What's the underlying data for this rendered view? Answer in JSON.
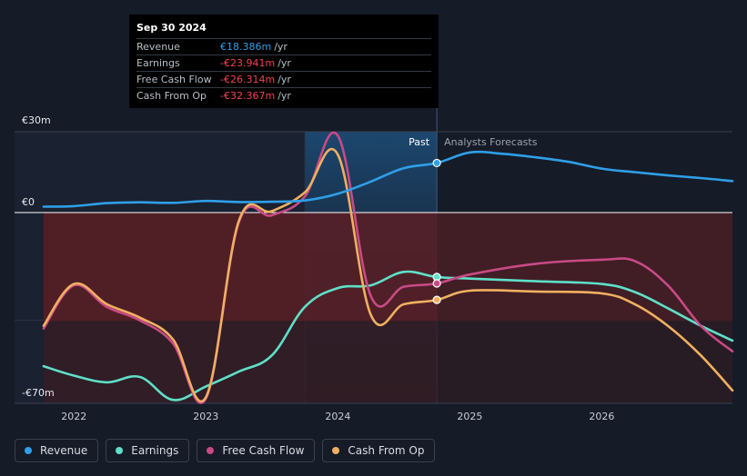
{
  "tooltip": {
    "date": "Sep 30 2024",
    "rows": [
      {
        "label": "Revenue",
        "value": "€18.386m",
        "unit": "/yr",
        "color": "#2f9fe8"
      },
      {
        "label": "Earnings",
        "value": "-€23.941m",
        "unit": "/yr",
        "color": "#f04452"
      },
      {
        "label": "Free Cash Flow",
        "value": "-€26.314m",
        "unit": "/yr",
        "color": "#f04452"
      },
      {
        "label": "Cash From Op",
        "value": "-€32.367m",
        "unit": "/yr",
        "color": "#f04452"
      }
    ]
  },
  "chart_data": {
    "type": "line",
    "y_axis_labels": [
      "€30m",
      "€0",
      "-€70m"
    ],
    "ylim": [
      -70,
      30
    ],
    "x_ticks": [
      {
        "label": "2022",
        "x": 2022.0
      },
      {
        "label": "2023",
        "x": 2023.0
      },
      {
        "label": "2024",
        "x": 2024.0
      },
      {
        "label": "2025",
        "x": 2025.0
      },
      {
        "label": "2026",
        "x": 2026.0
      }
    ],
    "xlim": [
      2021.55,
      2026.99
    ],
    "forecast_start": 2024.75,
    "shaded_start": 2023.75,
    "past_label": "Past",
    "forecast_label": "Analysts Forecasts",
    "series": [
      {
        "name": "Revenue",
        "color": "#2f9fe8",
        "marker_x": 2024.75,
        "marker_y": 18.4,
        "points": [
          [
            2021.77,
            2.2
          ],
          [
            2022.0,
            2.4
          ],
          [
            2022.25,
            3.5
          ],
          [
            2022.5,
            3.8
          ],
          [
            2022.75,
            3.6
          ],
          [
            2023.0,
            4.3
          ],
          [
            2023.25,
            3.9
          ],
          [
            2023.5,
            4.0
          ],
          [
            2023.75,
            4.5
          ],
          [
            2024.0,
            7.0
          ],
          [
            2024.25,
            11.5
          ],
          [
            2024.5,
            16.5
          ],
          [
            2024.75,
            18.4
          ],
          [
            2025.0,
            22.3
          ],
          [
            2025.25,
            21.8
          ],
          [
            2025.5,
            20.5
          ],
          [
            2025.75,
            18.8
          ],
          [
            2026.0,
            16.3
          ],
          [
            2026.25,
            15.0
          ],
          [
            2026.5,
            13.8
          ],
          [
            2026.75,
            12.8
          ],
          [
            2026.99,
            11.7
          ]
        ]
      },
      {
        "name": "Earnings",
        "color": "#5fe0c8",
        "marker_x": 2024.75,
        "marker_y": -23.9,
        "points": [
          [
            2021.77,
            -57.0
          ],
          [
            2022.0,
            -60.5
          ],
          [
            2022.25,
            -63.0
          ],
          [
            2022.5,
            -61.0
          ],
          [
            2022.75,
            -69.5
          ],
          [
            2023.0,
            -64.5
          ],
          [
            2023.25,
            -59.0
          ],
          [
            2023.5,
            -53.0
          ],
          [
            2023.75,
            -35.0
          ],
          [
            2024.0,
            -28.0
          ],
          [
            2024.25,
            -27.0
          ],
          [
            2024.5,
            -22.0
          ],
          [
            2024.75,
            -23.9
          ],
          [
            2025.0,
            -24.5
          ],
          [
            2025.5,
            -25.5
          ],
          [
            2026.0,
            -26.5
          ],
          [
            2026.25,
            -29.5
          ],
          [
            2026.5,
            -35.5
          ],
          [
            2026.75,
            -42.0
          ],
          [
            2026.99,
            -47.5
          ]
        ]
      },
      {
        "name": "Free Cash Flow",
        "color": "#c94a86",
        "marker_x": 2024.75,
        "marker_y": -26.3,
        "points": [
          [
            2021.77,
            -43.0
          ],
          [
            2022.0,
            -27.0
          ],
          [
            2022.25,
            -35.0
          ],
          [
            2022.5,
            -40.0
          ],
          [
            2022.75,
            -48.5
          ],
          [
            2023.0,
            -69.0
          ],
          [
            2023.25,
            -3.5
          ],
          [
            2023.5,
            -1.0
          ],
          [
            2023.75,
            6.0
          ],
          [
            2024.0,
            28.5
          ],
          [
            2024.25,
            -31.0
          ],
          [
            2024.5,
            -27.5
          ],
          [
            2024.75,
            -26.3
          ],
          [
            2025.0,
            -23.0
          ],
          [
            2025.5,
            -19.0
          ],
          [
            2026.0,
            -17.5
          ],
          [
            2026.25,
            -18.0
          ],
          [
            2026.5,
            -27.0
          ],
          [
            2026.75,
            -42.0
          ],
          [
            2026.99,
            -51.5
          ]
        ]
      },
      {
        "name": "Cash From Op",
        "color": "#f0b060",
        "marker_x": 2024.75,
        "marker_y": -32.4,
        "points": [
          [
            2021.77,
            -42.0
          ],
          [
            2022.0,
            -26.5
          ],
          [
            2022.25,
            -34.0
          ],
          [
            2022.5,
            -39.0
          ],
          [
            2022.75,
            -47.0
          ],
          [
            2023.0,
            -68.5
          ],
          [
            2023.25,
            -3.0
          ],
          [
            2023.5,
            0.5
          ],
          [
            2023.75,
            7.5
          ],
          [
            2024.0,
            21.5
          ],
          [
            2024.25,
            -38.0
          ],
          [
            2024.5,
            -34.0
          ],
          [
            2024.75,
            -32.4
          ],
          [
            2025.0,
            -29.0
          ],
          [
            2025.5,
            -29.3
          ],
          [
            2026.0,
            -30.0
          ],
          [
            2026.25,
            -34.0
          ],
          [
            2026.5,
            -42.0
          ],
          [
            2026.75,
            -53.0
          ],
          [
            2026.99,
            -66.0
          ]
        ]
      }
    ]
  },
  "legend": [
    {
      "label": "Revenue",
      "color": "#2f9fe8"
    },
    {
      "label": "Earnings",
      "color": "#5fe0c8"
    },
    {
      "label": "Free Cash Flow",
      "color": "#c94a86"
    },
    {
      "label": "Cash From Op",
      "color": "#f0b060"
    }
  ]
}
